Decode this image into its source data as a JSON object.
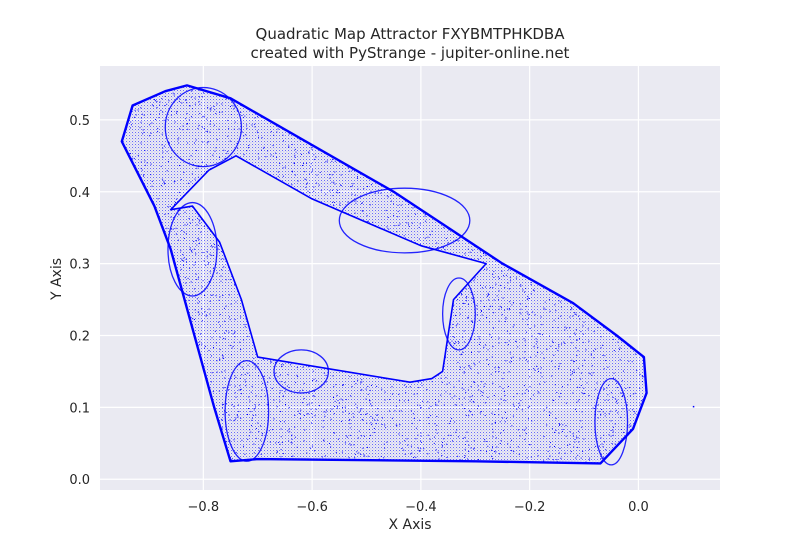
{
  "chart_data": {
    "type": "scatter",
    "title": "Quadratic Map Attractor FXYBMTPHKDBA",
    "subtitle": "created with PyStrange - jupiter-online.net",
    "xlabel": "X Axis",
    "ylabel": "Y Axis",
    "xlim": [
      -0.99,
      0.15
    ],
    "ylim": [
      -0.015,
      0.575
    ],
    "x_ticks": [
      -0.8,
      -0.6,
      -0.4,
      -0.2,
      0.0
    ],
    "x_tick_labels": [
      "−0.8",
      "−0.6",
      "−0.4",
      "−0.2",
      "0.0"
    ],
    "y_ticks": [
      0.0,
      0.1,
      0.2,
      0.3,
      0.4,
      0.5
    ],
    "y_tick_labels": [
      "0.0",
      "0.1",
      "0.2",
      "0.3",
      "0.4",
      "0.5"
    ],
    "grid": true,
    "point_color": "#0000ff",
    "background_color": "#eaeaf2",
    "grid_color": "#ffffff",
    "outline": [
      [
        -0.83,
        0.548
      ],
      [
        -0.75,
        0.53
      ],
      [
        -0.45,
        0.4
      ],
      [
        -0.25,
        0.3
      ],
      [
        -0.12,
        0.245
      ],
      [
        -0.04,
        0.2
      ],
      [
        0.01,
        0.17
      ],
      [
        0.015,
        0.12
      ],
      [
        -0.01,
        0.07
      ],
      [
        -0.07,
        0.022
      ],
      [
        -0.3,
        0.025
      ],
      [
        -0.7,
        0.028
      ],
      [
        -0.75,
        0.025
      ],
      [
        -0.78,
        0.1
      ],
      [
        -0.86,
        0.32
      ],
      [
        -0.89,
        0.38
      ],
      [
        -0.95,
        0.47
      ],
      [
        -0.93,
        0.52
      ],
      [
        -0.87,
        0.54
      ]
    ],
    "hole": [
      [
        -0.74,
        0.45
      ],
      [
        -0.6,
        0.39
      ],
      [
        -0.4,
        0.325
      ],
      [
        -0.28,
        0.3
      ],
      [
        -0.34,
        0.25
      ],
      [
        -0.36,
        0.15
      ],
      [
        -0.38,
        0.14
      ],
      [
        -0.42,
        0.135
      ],
      [
        -0.7,
        0.17
      ],
      [
        -0.73,
        0.25
      ],
      [
        -0.77,
        0.33
      ],
      [
        -0.82,
        0.38
      ],
      [
        -0.86,
        0.375
      ],
      [
        -0.79,
        0.43
      ]
    ],
    "rings": [
      {
        "cx": -0.8,
        "cy": 0.49,
        "rx": 0.07,
        "ry": 0.055
      },
      {
        "cx": -0.82,
        "cy": 0.32,
        "rx": 0.045,
        "ry": 0.065
      },
      {
        "cx": -0.72,
        "cy": 0.095,
        "rx": 0.04,
        "ry": 0.07
      },
      {
        "cx": -0.43,
        "cy": 0.36,
        "rx": 0.12,
        "ry": 0.045
      },
      {
        "cx": -0.33,
        "cy": 0.23,
        "rx": 0.03,
        "ry": 0.05
      },
      {
        "cx": -0.05,
        "cy": 0.08,
        "rx": 0.03,
        "ry": 0.06
      },
      {
        "cx": -0.62,
        "cy": 0.15,
        "rx": 0.05,
        "ry": 0.03
      }
    ],
    "stray_points": [
      [
        0.1,
        0.102
      ]
    ]
  }
}
